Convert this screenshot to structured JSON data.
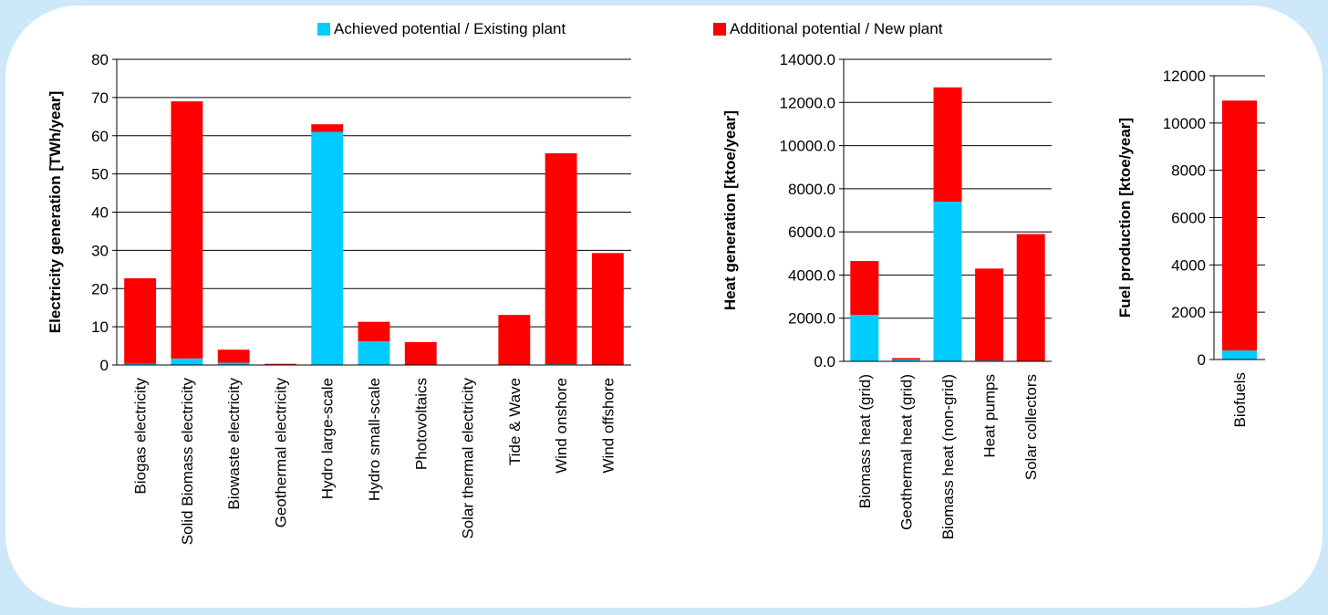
{
  "colors": {
    "achieved": "#00ccff",
    "additional": "#ff0000",
    "background": "#cde8f8"
  },
  "legend": [
    {
      "label": "Achieved potential / Existing plant",
      "color": "#00ccff"
    },
    {
      "label": "Additional potential / New plant",
      "color": "#ff0000"
    }
  ],
  "chart_data": [
    {
      "type": "bar",
      "stacked": true,
      "ylabel": "Electricity generation [TWh/year]",
      "ylim": [
        0,
        80
      ],
      "yticks": [
        "0",
        "10",
        "20",
        "30",
        "40",
        "50",
        "60",
        "70",
        "80"
      ],
      "grid": true,
      "categories": [
        "Biogas electricity",
        "Solid Biomass electricity",
        "Biowaste electricity",
        "Geothermal electricity",
        "Hydro large-scale",
        "Hydro small-scale",
        "Photovoltaics",
        "Solar thermal electricity",
        "Tide & Wave",
        "Wind onshore",
        "Wind offshore"
      ],
      "series": [
        {
          "name": "Achieved potential / Existing plant",
          "values": [
            0.3,
            1.7,
            0.6,
            0.1,
            61,
            6.2,
            0.1,
            0,
            0,
            0.2,
            0
          ]
        },
        {
          "name": "Additional potential / New plant",
          "values": [
            22.4,
            67.3,
            3.4,
            0.2,
            2,
            5.1,
            5.9,
            0,
            13.1,
            55.2,
            29.3
          ]
        }
      ]
    },
    {
      "type": "bar",
      "stacked": true,
      "ylabel": "Heat generation [ktoe/year]",
      "ylim": [
        0,
        14000
      ],
      "yticks": [
        "0.0",
        "2000.0",
        "4000.0",
        "6000.0",
        "8000.0",
        "10000.0",
        "12000.0",
        "14000.0"
      ],
      "grid": true,
      "categories": [
        "Biomass heat (grid)",
        "Geothermal heat (grid)",
        "Biomass heat (non-grid)",
        "Heat pumps",
        "Solar collectors"
      ],
      "series": [
        {
          "name": "Achieved potential / Existing plant",
          "values": [
            2150,
            80,
            7400,
            40,
            20
          ]
        },
        {
          "name": "Additional potential / New plant",
          "values": [
            2500,
            70,
            5300,
            4260,
            5880
          ]
        }
      ]
    },
    {
      "type": "bar",
      "stacked": true,
      "ylabel": "Fuel production [ktoe/year]",
      "ylim": [
        0,
        12000
      ],
      "yticks": [
        "0",
        "2000",
        "4000",
        "6000",
        "8000",
        "10000",
        "12000"
      ],
      "grid": true,
      "categories": [
        "Biofuels"
      ],
      "series": [
        {
          "name": "Achieved potential / Existing plant",
          "values": [
            380
          ]
        },
        {
          "name": "Additional potential / New plant",
          "values": [
            10570
          ]
        }
      ]
    }
  ]
}
